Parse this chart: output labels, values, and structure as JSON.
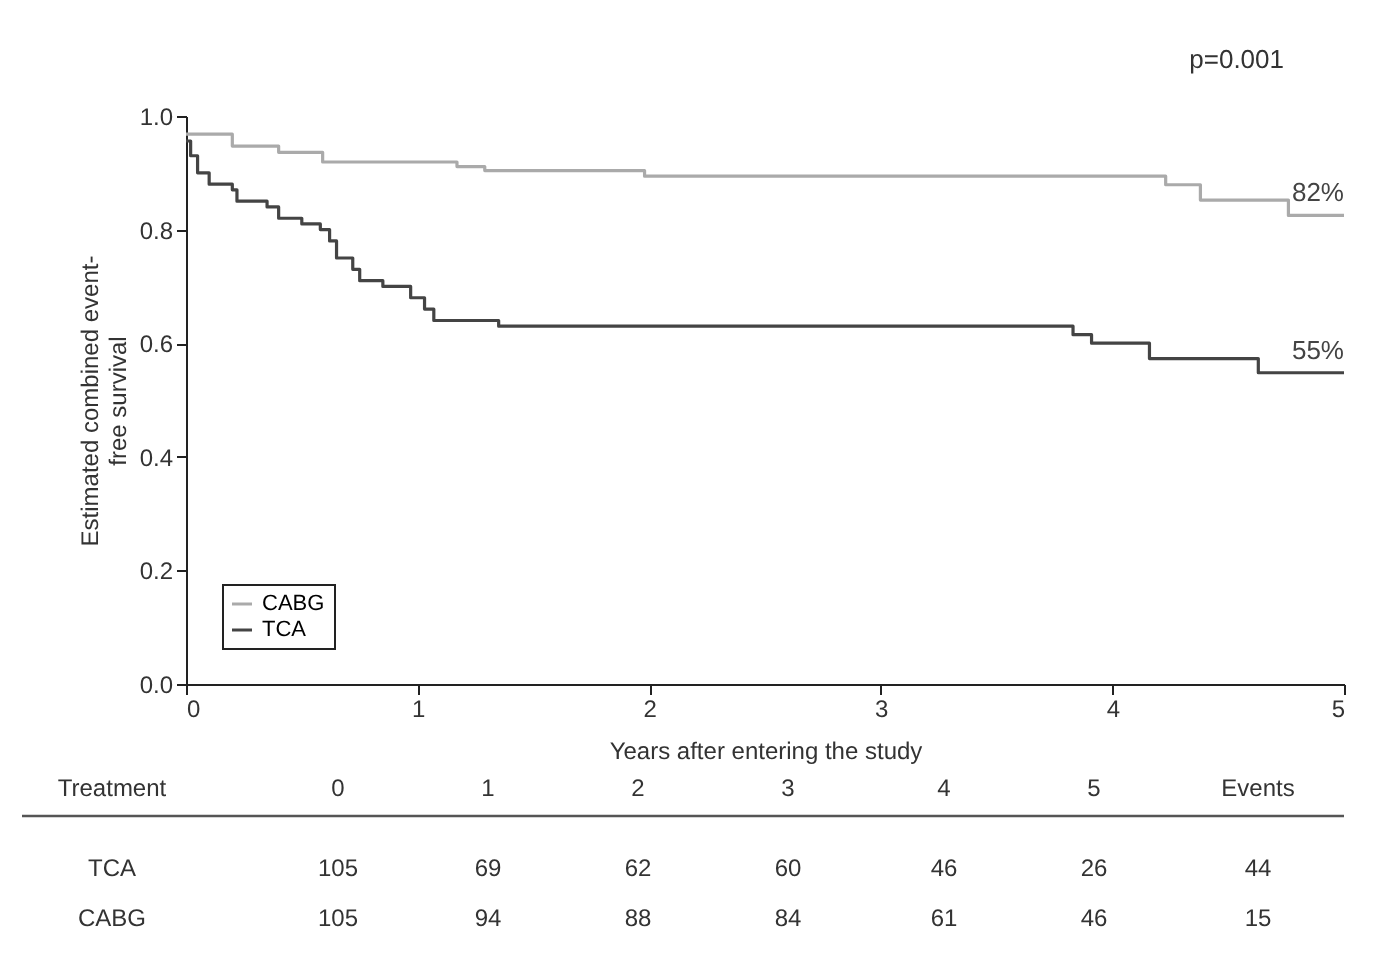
{
  "chart_data": {
    "type": "step",
    "xlabel": "Years after entering the study",
    "ylabel": "Estimated combined event-free survival",
    "xlim": [
      0,
      5
    ],
    "xticks": [
      0,
      1,
      2,
      3,
      4,
      5
    ],
    "ylim": [
      0,
      1
    ],
    "yticks": [
      {
        "value": 0,
        "label": "0.0"
      },
      {
        "value": 0.2,
        "label": "0.2"
      },
      {
        "value": 0.4,
        "label": "0.4"
      },
      {
        "value": 0.6,
        "label": "0.6"
      },
      {
        "value": 0.8,
        "label": "0.8"
      },
      {
        "value": 1,
        "label": "1.0"
      }
    ],
    "grid": false,
    "legend": "bottom left",
    "marker": "none",
    "line_style": "solid",
    "series": [
      {
        "name": "CABG",
        "color": "#aaaaaa",
        "x": [
          0,
          0.2,
          0.4,
          0.59,
          1.17,
          1.29,
          1.98,
          4.23,
          4.38,
          4.76,
          5
        ],
        "values": [
          0.968,
          0.947,
          0.936,
          0.919,
          0.911,
          0.904,
          0.894,
          0.879,
          0.852,
          0.825,
          0.825
        ]
      },
      {
        "name": "TCA",
        "color": "#444444",
        "x": [
          0,
          0.02,
          0.05,
          0.1,
          0.2,
          0.22,
          0.35,
          0.4,
          0.5,
          0.58,
          0.62,
          0.65,
          0.72,
          0.75,
          0.85,
          0.97,
          1.03,
          1.07,
          1.35,
          3.83,
          3.91,
          4.16,
          4.63,
          5
        ],
        "values": [
          0.956,
          0.93,
          0.9,
          0.88,
          0.87,
          0.85,
          0.84,
          0.82,
          0.81,
          0.8,
          0.78,
          0.75,
          0.73,
          0.71,
          0.7,
          0.68,
          0.66,
          0.64,
          0.63,
          0.615,
          0.6,
          0.573,
          0.548,
          0.548
        ]
      }
    ],
    "annotations": [
      "p=0.001",
      {
        "text": "82%",
        "x": 5,
        "y": 0.825
      },
      {
        "text": "55%",
        "x": 5,
        "y": 0.548
      },
      "Treatment",
      "0",
      "1",
      "2",
      "3",
      "4",
      "5",
      "Events",
      "TCA",
      "105",
      "69",
      "62",
      "60",
      "46",
      "26",
      "44",
      "CABG",
      "105",
      "94",
      "88",
      "84",
      "61",
      "46",
      "15"
    ]
  }
}
